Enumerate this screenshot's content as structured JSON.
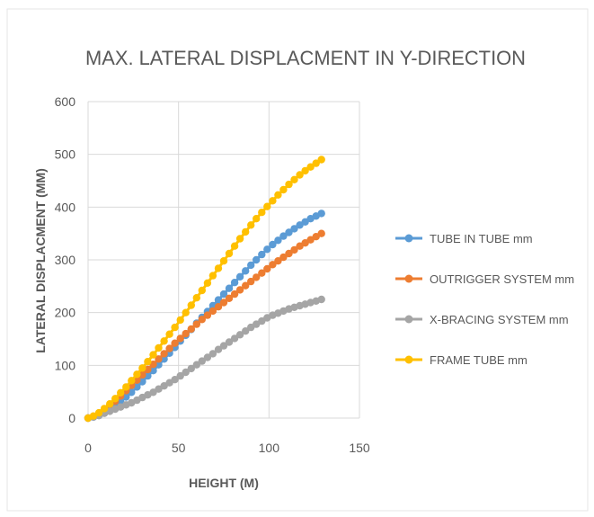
{
  "chart_data": {
    "type": "line",
    "title": "MAX. LATERAL DISPLACMENT IN Y-DIRECTION",
    "xlabel": "HEIGHT (M)",
    "ylabel": "LATERAL DISPLACMENT (MM)",
    "xlim": [
      0,
      150
    ],
    "ylim": [
      0,
      600
    ],
    "xticks": [
      0,
      50,
      100,
      150
    ],
    "yticks": [
      0,
      100,
      200,
      300,
      400,
      500,
      600
    ],
    "grid": true,
    "legend_position": "right",
    "series": [
      {
        "name": "TUBE IN TUBE mm",
        "color": "#5b9bd5",
        "x": [
          0,
          3,
          6,
          9,
          12,
          15,
          18,
          21,
          24,
          27,
          30,
          33,
          36,
          39,
          42,
          45,
          48,
          51,
          54,
          57,
          60,
          63,
          66,
          69,
          72,
          75,
          78,
          81,
          84,
          87,
          90,
          93,
          96,
          99,
          102,
          105,
          108,
          111,
          114,
          117,
          120,
          123,
          126,
          129
        ],
        "y": [
          0,
          2,
          5,
          10,
          16,
          23,
          31,
          40,
          49,
          59,
          69,
          80,
          90,
          101,
          112,
          123,
          134,
          146,
          157,
          168,
          180,
          191,
          202,
          213,
          224,
          235,
          246,
          257,
          268,
          279,
          290,
          300,
          310,
          320,
          329,
          337,
          345,
          352,
          359,
          366,
          372,
          378,
          383,
          388
        ]
      },
      {
        "name": "OUTRIGGER SYSTEM mm",
        "color": "#ed7d31",
        "x": [
          0,
          3,
          6,
          9,
          12,
          15,
          18,
          21,
          24,
          27,
          30,
          33,
          36,
          39,
          42,
          45,
          48,
          51,
          54,
          57,
          60,
          63,
          66,
          69,
          72,
          75,
          78,
          81,
          84,
          87,
          90,
          93,
          96,
          99,
          102,
          105,
          108,
          111,
          114,
          117,
          120,
          123,
          126,
          129
        ],
        "y": [
          0,
          3,
          8,
          15,
          23,
          32,
          42,
          52,
          62,
          72,
          82,
          92,
          102,
          112,
          122,
          132,
          142,
          151,
          160,
          169,
          178,
          187,
          195,
          203,
          211,
          219,
          227,
          235,
          243,
          251,
          259,
          267,
          275,
          283,
          291,
          298,
          305,
          312,
          319,
          326,
          332,
          338,
          344,
          350
        ]
      },
      {
        "name": "X-BRACING SYSTEM mm",
        "color": "#a5a5a5",
        "x": [
          0,
          3,
          6,
          9,
          12,
          15,
          18,
          21,
          24,
          27,
          30,
          33,
          36,
          39,
          42,
          45,
          48,
          51,
          54,
          57,
          60,
          63,
          66,
          69,
          72,
          75,
          78,
          81,
          84,
          87,
          90,
          93,
          96,
          99,
          102,
          105,
          108,
          111,
          114,
          117,
          120,
          123,
          126,
          129
        ],
        "y": [
          0,
          2,
          5,
          9,
          13,
          17,
          21,
          25,
          29,
          34,
          39,
          44,
          49,
          55,
          61,
          67,
          73,
          80,
          87,
          94,
          101,
          108,
          115,
          122,
          130,
          137,
          144,
          151,
          158,
          165,
          172,
          178,
          184,
          190,
          195,
          199,
          203,
          207,
          210,
          213,
          216,
          219,
          222,
          225
        ]
      },
      {
        "name": "FRAME TUBE  mm",
        "color": "#ffc000",
        "x": [
          0,
          3,
          6,
          9,
          12,
          15,
          18,
          21,
          24,
          27,
          30,
          33,
          36,
          39,
          42,
          45,
          48,
          51,
          54,
          57,
          60,
          63,
          66,
          69,
          72,
          75,
          78,
          81,
          84,
          87,
          90,
          93,
          96,
          99,
          102,
          105,
          108,
          111,
          114,
          117,
          120,
          123,
          126,
          129
        ],
        "y": [
          0,
          4,
          10,
          18,
          27,
          37,
          48,
          59,
          71,
          83,
          95,
          107,
          120,
          133,
          146,
          159,
          172,
          186,
          200,
          214,
          228,
          242,
          256,
          270,
          284,
          298,
          312,
          326,
          340,
          353,
          366,
          378,
          390,
          401,
          412,
          423,
          433,
          443,
          452,
          461,
          469,
          476,
          483,
          490
        ]
      }
    ]
  }
}
